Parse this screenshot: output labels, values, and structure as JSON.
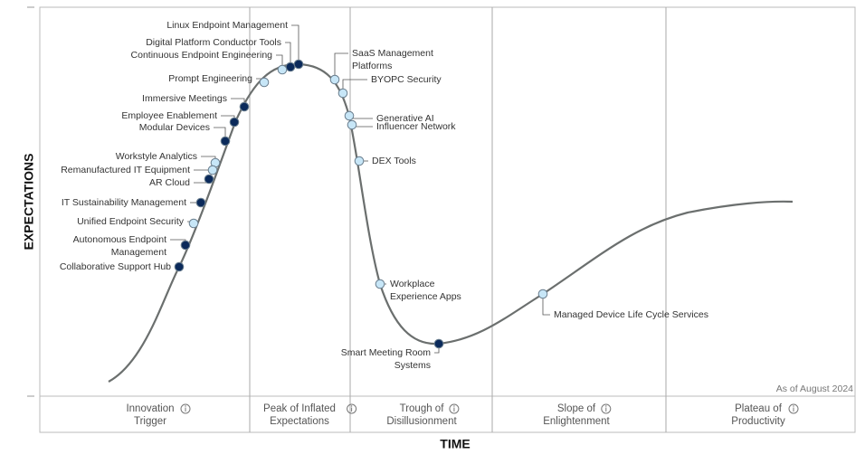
{
  "title_x": "TIME",
  "title_y": "EXPECTATIONS",
  "note": "As of August 2024",
  "phases": [
    {
      "label": [
        "Innovation",
        "Trigger"
      ]
    },
    {
      "label": [
        "Peak of Inflated",
        "Expectations"
      ]
    },
    {
      "label": [
        "Trough of",
        "Disillusionment"
      ]
    },
    {
      "label": [
        "Slope of",
        "Enlightenment"
      ]
    },
    {
      "label": [
        "Plateau of",
        "Productivity"
      ]
    }
  ],
  "nodes": [
    {
      "label": [
        "Linux Endpoint Management"
      ],
      "color": "#0b2a5b"
    },
    {
      "label": [
        "Digital Platform Conductor Tools"
      ],
      "color": "#0b2a5b"
    },
    {
      "label": [
        "Continuous Endpoint Engineering"
      ],
      "color": "#c7e6f7"
    },
    {
      "label": [
        "Prompt Engineering"
      ],
      "color": "#c7e6f7"
    },
    {
      "label": [
        "Immersive Meetings"
      ],
      "color": "#0b2a5b"
    },
    {
      "label": [
        "Employee Enablement"
      ],
      "color": "#0b2a5b"
    },
    {
      "label": [
        "Modular Devices"
      ],
      "color": "#0b2a5b"
    },
    {
      "label": [
        "Workstyle Analytics"
      ],
      "color": "#c7e6f7"
    },
    {
      "label": [
        "Remanufactured IT Equipment"
      ],
      "color": "#c7e6f7"
    },
    {
      "label": [
        "AR Cloud"
      ],
      "color": "#0b2a5b"
    },
    {
      "label": [
        "IT Sustainability Management"
      ],
      "color": "#0b2a5b"
    },
    {
      "label": [
        "Unified Endpoint Security"
      ],
      "color": "#c7e6f7"
    },
    {
      "label": [
        "Autonomous Endpoint",
        "Management"
      ],
      "color": "#0b2a5b"
    },
    {
      "label": [
        "Collaborative Support Hub"
      ],
      "color": "#0b2a5b"
    },
    {
      "label": [
        "SaaS Management",
        "Platforms"
      ],
      "color": "#c7e6f7"
    },
    {
      "label": [
        "BYOPC Security"
      ],
      "color": "#c7e6f7"
    },
    {
      "label": [
        "Generative AI"
      ],
      "color": "#c7e6f7"
    },
    {
      "label": [
        "Influencer Network"
      ],
      "color": "#c7e6f7"
    },
    {
      "label": [
        "DEX Tools"
      ],
      "color": "#c7e6f7"
    },
    {
      "label": [
        "Workplace",
        "Experience Apps"
      ],
      "color": "#c7e6f7"
    },
    {
      "label": [
        "Smart Meeting Room",
        "Systems"
      ],
      "color": "#0b2a5b"
    },
    {
      "label": [
        "Managed Device Life Cycle Services"
      ],
      "color": "#c7e6f7"
    }
  ]
}
